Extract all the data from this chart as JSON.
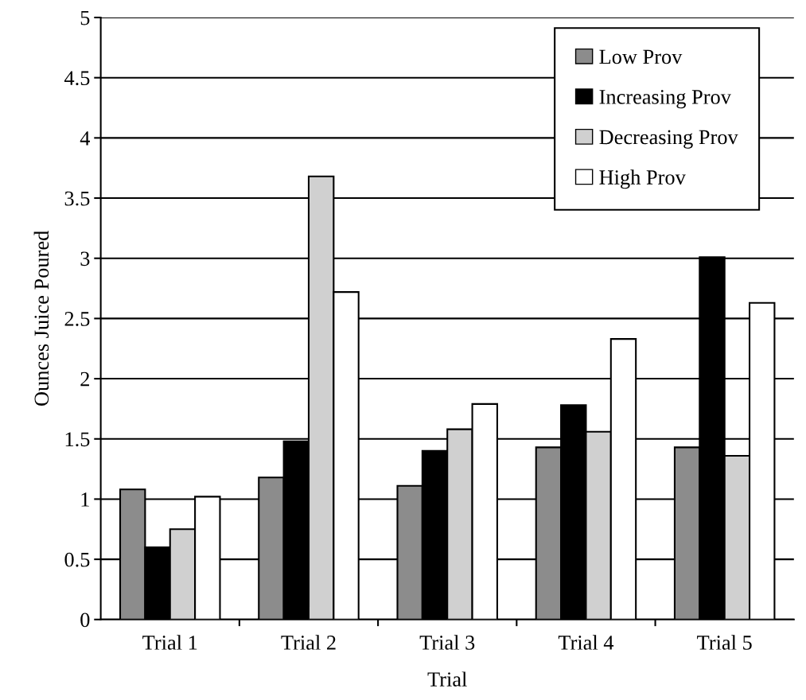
{
  "chart_data": {
    "type": "bar",
    "xlabel": "Trial",
    "ylabel": "Ounces Juice Poured",
    "categories": [
      "Trial 1",
      "Trial 2",
      "Trial 3",
      "Trial 4",
      "Trial 5"
    ],
    "series": [
      {
        "name": "Low Prov",
        "color": "#8c8c8c",
        "values": [
          1.08,
          1.18,
          1.11,
          1.43,
          1.43
        ]
      },
      {
        "name": "Increasing Prov",
        "color": "#000000",
        "values": [
          0.6,
          1.48,
          1.4,
          1.78,
          3.01
        ]
      },
      {
        "name": "Decreasing Prov",
        "color": "#d0d0d0",
        "values": [
          0.75,
          3.68,
          1.58,
          1.56,
          1.36
        ]
      },
      {
        "name": "High Prov",
        "color": "#ffffff",
        "values": [
          1.02,
          2.72,
          1.79,
          2.33,
          2.63
        ]
      }
    ],
    "ylim": [
      0,
      5
    ],
    "yticks": [
      0,
      0.5,
      1,
      1.5,
      2,
      2.5,
      3,
      3.5,
      4,
      4.5,
      5
    ],
    "grid": "y",
    "legend": "top right"
  }
}
